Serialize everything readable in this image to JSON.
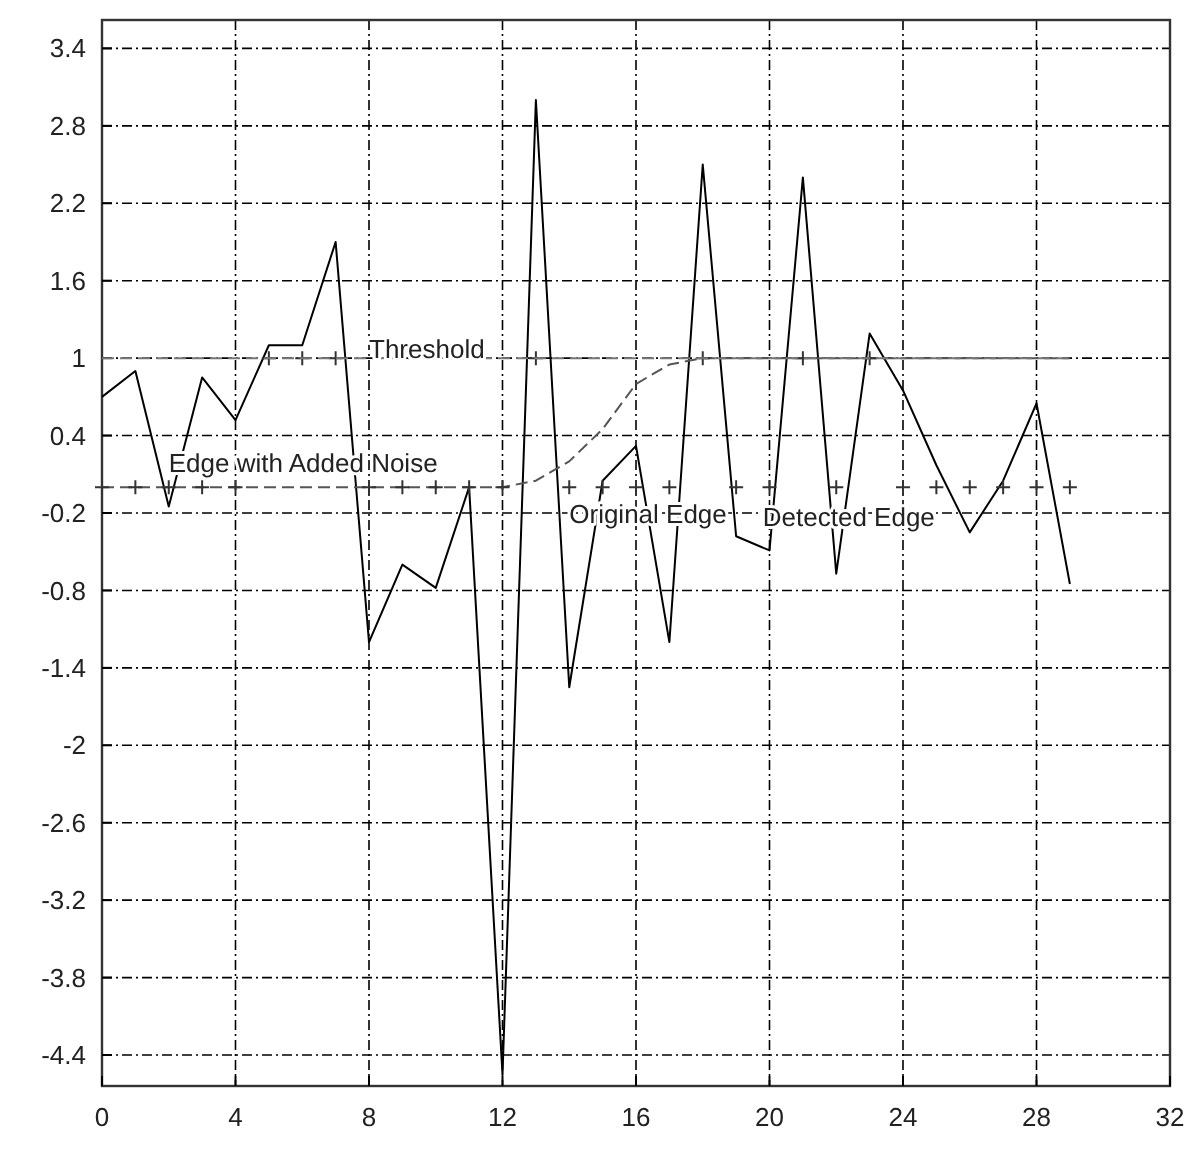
{
  "chart_data": {
    "type": "line",
    "xlim": [
      0,
      32
    ],
    "xticks": [
      0,
      4,
      8,
      12,
      16,
      20,
      24,
      28,
      32
    ],
    "ylim": [
      -4.64,
      3.62
    ],
    "yticks": [
      -4.4,
      -3.8,
      -3.2,
      -2.6,
      -2,
      -1.4,
      -0.8,
      -0.2,
      0.4,
      1,
      1.6,
      2.2,
      2.8,
      3.4
    ],
    "grid": true,
    "series": [
      {
        "color": "#000000",
        "line_style": "solid",
        "x": [
          0,
          1,
          2,
          3,
          4,
          5,
          6,
          7,
          8,
          9,
          10,
          11,
          12,
          13,
          14,
          15,
          16,
          17,
          18,
          19,
          20,
          21,
          22,
          23,
          24,
          25,
          26,
          27,
          28,
          29
        ],
        "values": [
          0.7,
          0.9,
          -0.15,
          0.85,
          0.52,
          1.1,
          1.1,
          1.9,
          -1.2,
          -0.6,
          -0.78,
          0.0,
          -4.55,
          3.0,
          -1.55,
          0.05,
          0.32,
          -1.2,
          2.5,
          -0.38,
          -0.49,
          2.4,
          -0.67,
          1.19,
          0.75,
          0.17,
          -0.35,
          0.05,
          0.65,
          -0.75
        ]
      },
      {
        "color": "#555555",
        "line_style": "dashed",
        "x": [
          0,
          1,
          2,
          3,
          4,
          5,
          6,
          7,
          8,
          9,
          10,
          11,
          12,
          13,
          14,
          15,
          16,
          17,
          18,
          19,
          20,
          21,
          22,
          23,
          24,
          25,
          26,
          27,
          28,
          29
        ],
        "values": [
          0,
          0,
          0,
          0,
          0,
          0,
          0,
          0,
          0,
          0,
          0,
          0,
          0,
          0.05,
          0.2,
          0.45,
          0.8,
          0.95,
          1,
          1,
          1,
          1,
          1,
          1,
          1,
          1,
          1,
          1,
          1,
          1
        ]
      },
      {
        "type": "scatter",
        "color": "#333333",
        "marker": "cross",
        "x": [
          0,
          1,
          2,
          3,
          4,
          5,
          6,
          7,
          8,
          9,
          10,
          11,
          12,
          13,
          14,
          15,
          16,
          17,
          18,
          19,
          20,
          21,
          22,
          23,
          24,
          25,
          26,
          27,
          28,
          29
        ],
        "values": [
          0,
          0,
          0,
          0,
          0,
          1,
          1,
          1,
          0,
          0,
          0,
          0,
          0,
          1,
          0,
          0,
          0,
          0,
          1,
          0,
          0,
          1,
          0,
          1,
          0,
          0,
          0,
          0,
          0,
          0
        ]
      },
      {
        "color": "#777777",
        "line_style": "dashed",
        "x": [
          0,
          29
        ],
        "values": [
          1,
          1
        ]
      }
    ],
    "annotations": [
      {
        "text": "Threshold",
        "x": 8,
        "y": 1.0
      },
      {
        "text": "Edge with Added Noise",
        "x": 2,
        "y": 0.12
      },
      {
        "text": "Original Edge",
        "x": 14,
        "y": -0.28
      },
      {
        "text": "Detected Edge",
        "x": 19.8,
        "y": -0.3
      }
    ]
  }
}
